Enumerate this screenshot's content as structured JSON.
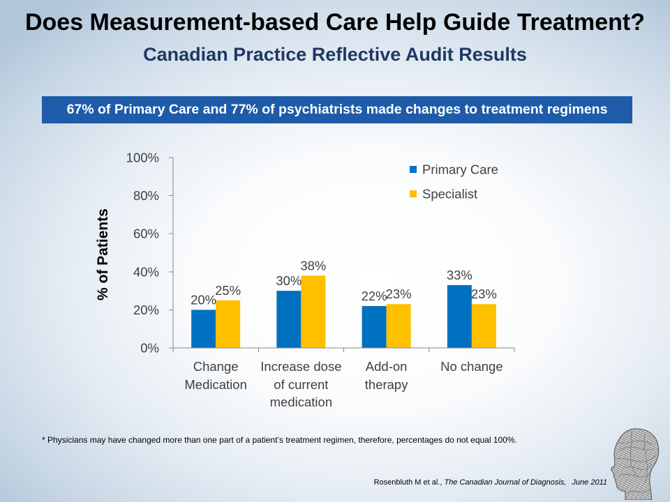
{
  "slide": {
    "title": "Does Measurement-based Care Help Guide Treatment?",
    "subtitle": "Canadian Practice Reflective Audit Results",
    "banner": "67% of Primary Care and 77% of psychiatrists made changes to treatment regimens",
    "footnote": "* Physicians may have changed more than one part of a patient’s treatment regimen, therefore, percentages do not equal 100%.",
    "citation": {
      "authors": "Rosenbluth M et al.,",
      "journal": "The Canadian Journal of Diagnosis,",
      "date": "June 2011"
    }
  },
  "icons": {
    "logo": "head-sketch-icon"
  },
  "colors": {
    "title": "#000000",
    "subtitle": "#1f3864",
    "banner_background": "#1e5ba8",
    "banner_text": "#ffffff",
    "axis": "#868686",
    "chart_text": "#404040"
  },
  "chart_data": {
    "type": "bar",
    "categories": [
      "Change Medication",
      "Increase dose of current medication",
      "Add-on therapy",
      "No change"
    ],
    "series": [
      {
        "name": "Primary Care",
        "values": [
          20,
          30,
          22,
          33
        ],
        "labels": [
          "20%",
          "30%",
          "22%",
          "33%"
        ],
        "color": "#0070c0"
      },
      {
        "name": "Specialist",
        "values": [
          25,
          38,
          23,
          23
        ],
        "labels": [
          "25%",
          "38%",
          "23%",
          "23%"
        ],
        "color": "#ffc000"
      }
    ],
    "ylabel": "% of Patients",
    "ylim": [
      0,
      100
    ],
    "yticks": [
      0,
      20,
      40,
      60,
      80,
      100
    ],
    "ytick_labels": [
      "0%",
      "20%",
      "40%",
      "60%",
      "80%",
      "100%"
    ],
    "grid": false,
    "legend": "top-right"
  }
}
